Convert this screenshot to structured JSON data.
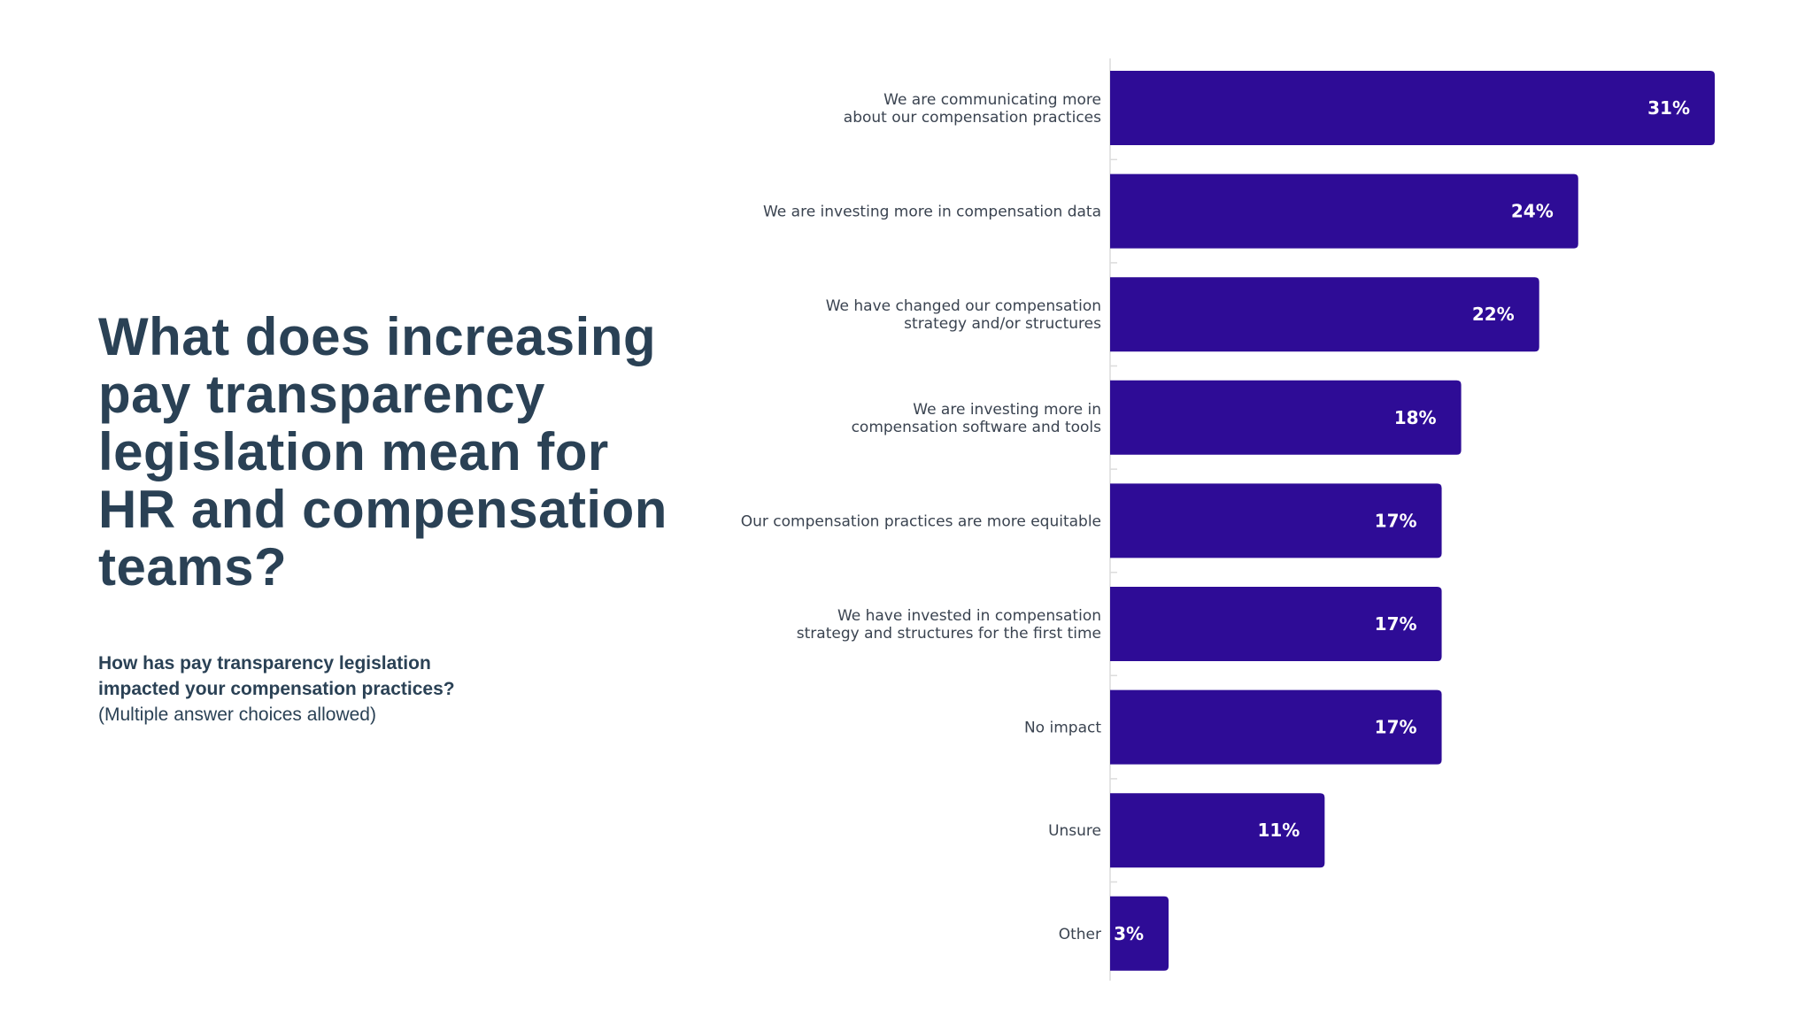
{
  "heading": "What does increasing pay transparency legislation mean for HR and compensation teams?",
  "question": {
    "text": "How has pay transparency legislation impacted your compensation practices?",
    "note": "(Multiple answer choices allowed)"
  },
  "colors": {
    "bar": "#2e0c96",
    "title": "#2a4155",
    "label": "#3a4350",
    "value_label": "#ffffff",
    "axis": "#dcdcdc"
  },
  "chart_data": {
    "type": "bar",
    "orientation": "horizontal",
    "categories": [
      [
        "We are communicating more",
        "about our compensation practices"
      ],
      [
        "We are investing more in compensation data"
      ],
      [
        "We have changed our compensation",
        "strategy and/or structures"
      ],
      [
        "We are investing more in",
        "compensation software and tools"
      ],
      [
        "Our compensation practices are more equitable"
      ],
      [
        "We have invested in compensation",
        "strategy and structures for the first time"
      ],
      [
        "No impact"
      ],
      [
        "Unsure"
      ],
      [
        "Other"
      ]
    ],
    "values": [
      31,
      24,
      22,
      18,
      17,
      17,
      17,
      11,
      3
    ],
    "value_labels": [
      "31%",
      "24%",
      "22%",
      "18%",
      "17%",
      "17%",
      "17%",
      "11%",
      "3%"
    ],
    "unit": "%",
    "xlim": [
      0,
      31
    ],
    "grid": false,
    "legend": "none"
  }
}
